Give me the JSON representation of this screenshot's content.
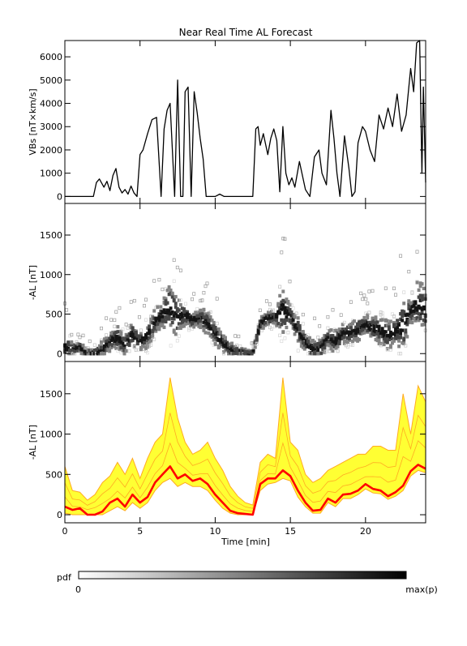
{
  "figure": {
    "title": "Near Real Time AL Forecast",
    "colors": {
      "axis": "#000000",
      "envelope_fill": "#ffff33",
      "envelope_line": "#ffaa22",
      "median_line": "#ff0000"
    }
  },
  "chart_data": [
    {
      "type": "line",
      "title": "Near Real Time AL Forecast",
      "xlabel": "",
      "ylabel": "VBs [nT×km/s]",
      "xlim": [
        0,
        24
      ],
      "ylim": [
        -300,
        6700
      ],
      "yticks": [
        0,
        1000,
        2000,
        3000,
        4000,
        5000,
        6000
      ],
      "xticks": [
        0,
        5,
        10,
        15,
        20
      ],
      "xticklabels_visible": false,
      "series": [
        {
          "x": [
            0,
            1.9,
            2.1,
            2.3,
            2.6,
            2.8,
            3.0,
            3.2,
            3.4,
            3.6,
            3.8,
            4.0,
            4.2,
            4.4,
            4.6,
            4.8,
            5.0,
            5.2,
            5.5,
            5.8,
            6.1,
            6.4,
            6.6,
            6.8,
            7.0,
            7.3,
            7.5,
            7.7,
            7.85,
            8.0,
            8.2,
            8.4,
            8.6,
            8.8,
            9.0,
            9.2,
            9.4,
            9.6,
            9.8,
            10.0,
            10.3,
            10.6,
            12.5,
            12.7,
            12.85,
            13.0,
            13.2,
            13.5,
            13.7,
            13.9,
            14.1,
            14.3,
            14.5,
            14.7,
            14.9,
            15.1,
            15.3,
            15.6,
            16.0,
            16.3,
            16.6,
            16.9,
            17.1,
            17.4,
            17.7,
            17.9,
            18.1,
            18.3,
            18.6,
            18.9,
            19.1,
            19.3,
            19.5,
            19.8,
            20.0,
            20.3,
            20.6,
            20.9,
            21.2,
            21.5,
            21.8,
            22.1,
            22.4,
            22.7,
            23.0,
            23.2,
            23.4,
            23.6,
            23.75,
            23.85,
            24.0
          ],
          "y": [
            0,
            0,
            600,
            750,
            400,
            650,
            250,
            900,
            1200,
            400,
            150,
            300,
            100,
            450,
            150,
            0,
            1800,
            2000,
            2700,
            3300,
            3400,
            0,
            2900,
            3700,
            4000,
            0,
            5000,
            0,
            0,
            4500,
            4700,
            0,
            4500,
            3600,
            2500,
            1600,
            0,
            0,
            0,
            0,
            100,
            0,
            0,
            2900,
            3000,
            2200,
            2700,
            1800,
            2500,
            2900,
            2400,
            200,
            3000,
            1000,
            500,
            800,
            400,
            1500,
            300,
            0,
            1700,
            2000,
            1000,
            500,
            3700,
            2500,
            1000,
            0,
            2600,
            1200,
            0,
            200,
            2300,
            3000,
            2800,
            2000,
            1500,
            3500,
            2900,
            3800,
            3000,
            4400,
            2800,
            3500,
            5500,
            4500,
            6600,
            6700,
            1000,
            4700,
            600
          ]
        }
      ]
    },
    {
      "type": "heatmap",
      "title": "",
      "xlabel": "",
      "ylabel": "-AL [nT]",
      "xlim": [
        0,
        24
      ],
      "ylim": [
        -100,
        1900
      ],
      "yticks": [
        0,
        500,
        1000,
        1500
      ],
      "xticks": [
        0,
        5,
        10,
        15,
        20
      ],
      "xticklabels_visible": false,
      "colorscale": "white to black, probability density"
    },
    {
      "type": "area",
      "title": "",
      "xlabel": "Time [min]",
      "ylabel": "-AL [nT]",
      "xlim": [
        0,
        24
      ],
      "ylim": [
        -100,
        1900
      ],
      "yticks": [
        0,
        500,
        1000,
        1500
      ],
      "xticks": [
        0,
        5,
        10,
        15,
        20
      ],
      "xticklabels": [
        "0",
        "5",
        "10",
        "15",
        "20"
      ],
      "x": [
        0,
        0.5,
        1.0,
        1.5,
        2.0,
        2.5,
        3.0,
        3.5,
        4.0,
        4.5,
        5.0,
        5.5,
        6.0,
        6.5,
        7.0,
        7.5,
        8.0,
        8.5,
        9.0,
        9.5,
        10.0,
        10.5,
        11.0,
        11.5,
        12.0,
        12.5,
        13.0,
        13.5,
        14.0,
        14.5,
        15.0,
        15.5,
        16.0,
        16.5,
        17.0,
        17.5,
        18.0,
        18.5,
        19.0,
        19.5,
        20.0,
        20.5,
        21.0,
        21.5,
        22.0,
        22.5,
        23.0,
        23.5,
        24.0
      ],
      "series": [
        {
          "name": "",
          "role": "median",
          "values": [
            100,
            60,
            80,
            0,
            0,
            40,
            150,
            200,
            100,
            250,
            150,
            220,
            400,
            500,
            600,
            450,
            500,
            420,
            450,
            380,
            250,
            150,
            50,
            20,
            10,
            0,
            380,
            450,
            450,
            550,
            480,
            300,
            150,
            50,
            60,
            200,
            150,
            250,
            260,
            300,
            380,
            320,
            300,
            230,
            280,
            360,
            540,
            620,
            570
          ]
        },
        {
          "name": "",
          "role": "upper",
          "values": [
            600,
            300,
            280,
            180,
            250,
            400,
            480,
            650,
            500,
            700,
            450,
            700,
            900,
            1000,
            1700,
            1200,
            900,
            750,
            800,
            900,
            700,
            550,
            350,
            230,
            150,
            120,
            650,
            750,
            700,
            1700,
            900,
            800,
            500,
            400,
            450,
            550,
            600,
            650,
            700,
            750,
            750,
            850,
            850,
            800,
            800,
            1500,
            1000,
            1600,
            1400
          ]
        },
        {
          "name": "",
          "role": "lower",
          "values": [
            20,
            0,
            0,
            0,
            0,
            0,
            50,
            100,
            50,
            150,
            80,
            150,
            300,
            400,
            450,
            350,
            400,
            350,
            350,
            300,
            180,
            80,
            20,
            0,
            0,
            0,
            300,
            380,
            400,
            450,
            420,
            220,
            100,
            20,
            20,
            150,
            100,
            200,
            200,
            250,
            320,
            270,
            260,
            190,
            230,
            300,
            480,
            550,
            520
          ]
        }
      ]
    }
  ],
  "colorbar": {
    "label": "pdf",
    "min_label": "0",
    "max_label": "max(p)"
  }
}
